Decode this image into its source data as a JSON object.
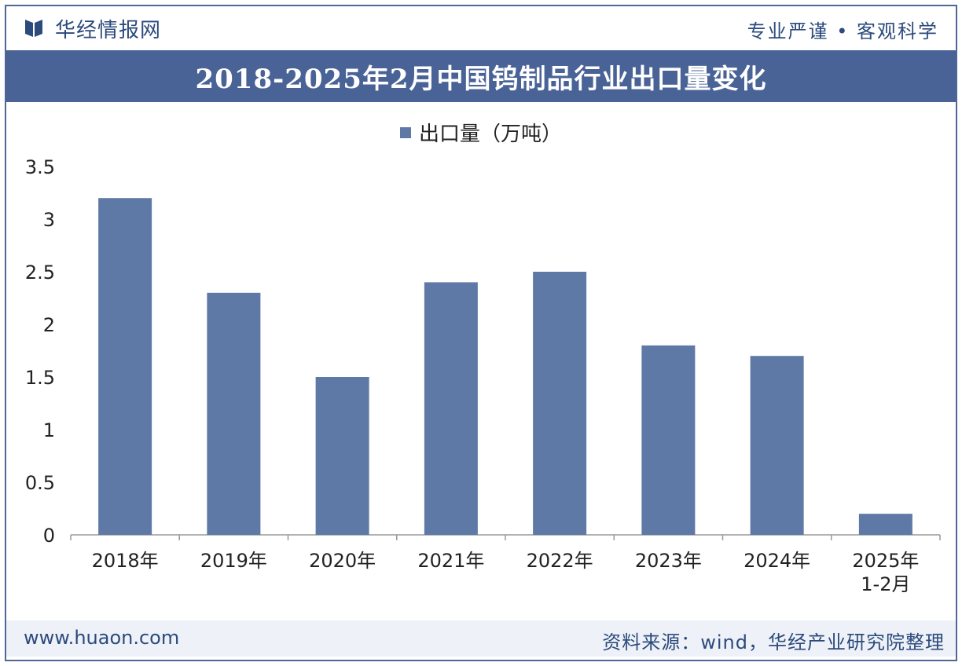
{
  "header": {
    "brand": "华经情报网",
    "slogan": "专业严谨 • 客观科学"
  },
  "title": "2018-2025年2月中国钨制品行业出口量变化",
  "footer": {
    "website": "www.huaon.com",
    "source": "资料来源：wind，华经产业研究院整理"
  },
  "colors": {
    "bar": "#5f79a6",
    "title_bg": "#4a6397",
    "accent_text": "#2c4a7c"
  },
  "chart_data": {
    "type": "bar",
    "categories": [
      "2018年",
      "2019年",
      "2020年",
      "2021年",
      "2022年",
      "2023年",
      "2024年",
      "2025年\n1-2月"
    ],
    "series": [
      {
        "name": "出口量（万吨）",
        "values": [
          3.2,
          2.3,
          1.5,
          2.4,
          2.5,
          1.8,
          1.7,
          0.2
        ]
      }
    ],
    "ylim": [
      0,
      3.5
    ],
    "yticks": [
      "0",
      "0.5",
      "1",
      "1.5",
      "2",
      "2.5",
      "3",
      "3.5"
    ],
    "legend_position": "top-center",
    "grid": false
  }
}
